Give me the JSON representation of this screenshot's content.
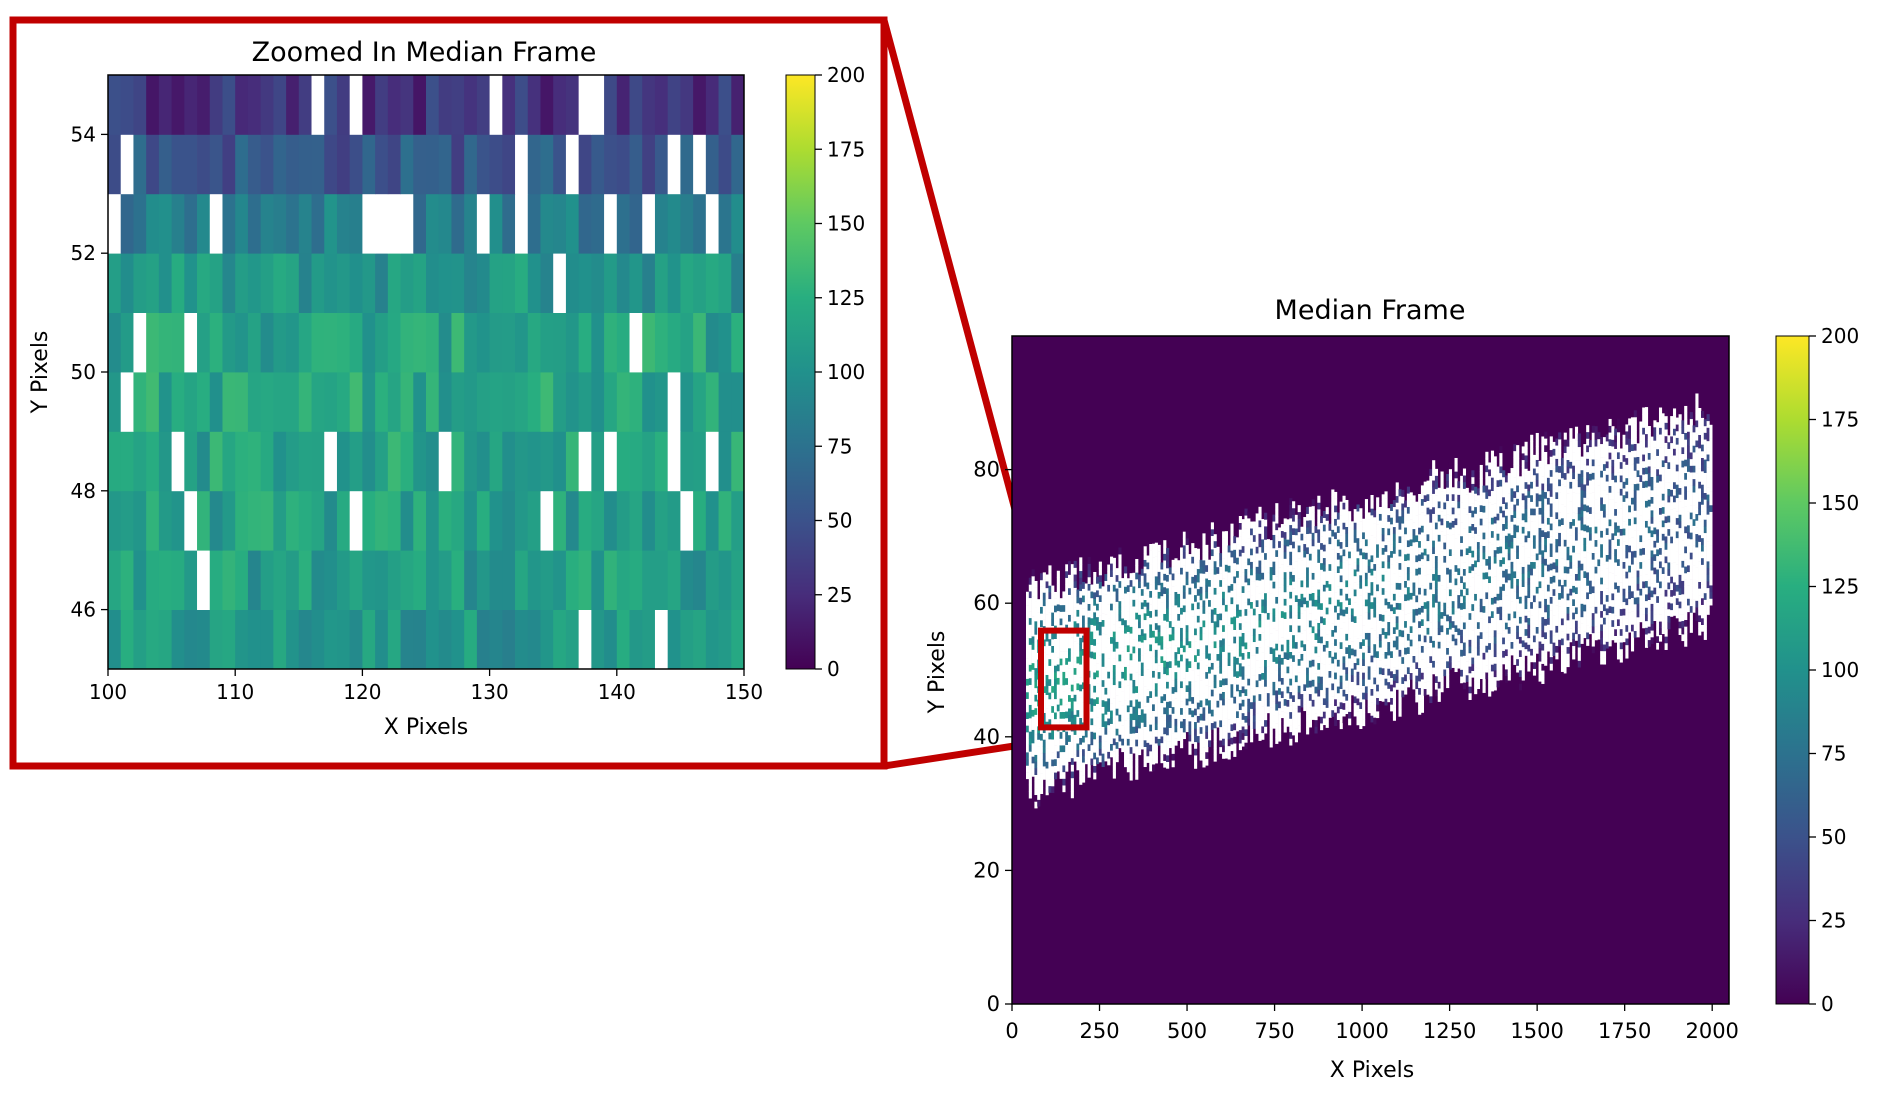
{
  "accent_color": "#c00000",
  "colormap": "viridis",
  "chart_data": [
    {
      "type": "heatmap",
      "title": "Zoomed In Median Frame",
      "xlabel": "X Pixels",
      "ylabel": "Y Pixels",
      "xlim": [
        100,
        150
      ],
      "ylim": [
        45,
        55
      ],
      "xticks": [
        "100",
        "110",
        "120",
        "130",
        "140",
        "150"
      ],
      "yticks": [
        "46",
        "48",
        "50",
        "52",
        "54"
      ],
      "colorbar": {
        "vmin": 0,
        "vmax": 200,
        "ticks": [
          "0",
          "25",
          "50",
          "75",
          "100",
          "125",
          "150",
          "175",
          "200"
        ]
      },
      "row_mean_values": [
        {
          "y": 45.5,
          "value": 105
        },
        {
          "y": 46.5,
          "value": 110
        },
        {
          "y": 47.5,
          "value": 112
        },
        {
          "y": 48.5,
          "value": 115
        },
        {
          "y": 49.5,
          "value": 118
        },
        {
          "y": 50.5,
          "value": 115
        },
        {
          "y": 51.5,
          "value": 105
        },
        {
          "y": 52.5,
          "value": 85
        },
        {
          "y": 53.5,
          "value": 55
        },
        {
          "y": 54.5,
          "value": 30
        }
      ],
      "masked_color": "#ffffff"
    },
    {
      "type": "heatmap",
      "title": "Median Frame",
      "xlabel": "X Pixels",
      "ylabel": "Y Pixels",
      "xlim": [
        0,
        2048
      ],
      "ylim": [
        0,
        100
      ],
      "xticks": [
        "0",
        "250",
        "500",
        "750",
        "1000",
        "1250",
        "1500",
        "1750",
        "2000"
      ],
      "yticks": [
        "0",
        "20",
        "40",
        "60",
        "80"
      ],
      "colorbar": {
        "vmin": 0,
        "vmax": 200,
        "ticks": [
          "0",
          "25",
          "50",
          "75",
          "100",
          "125",
          "150",
          "175",
          "200"
        ]
      },
      "background_value": 0,
      "trace": {
        "x_start": 40,
        "x_end": 2000,
        "center_y_start": 47,
        "center_y_end": 73,
        "half_width_start": 15,
        "half_width_end": 16,
        "peak_value_left": 110,
        "peak_value_right": 60
      },
      "zoom_region": {
        "x": [
          100,
          150
        ],
        "y": [
          45,
          55
        ]
      }
    }
  ]
}
